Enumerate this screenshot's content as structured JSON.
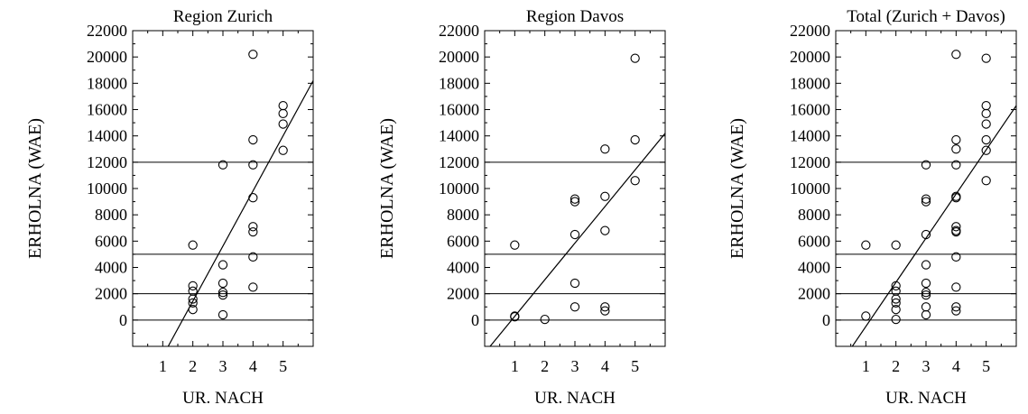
{
  "chart_data": [
    {
      "type": "scatter",
      "title": "Region Zurich",
      "xlabel": "UR. NACH",
      "ylabel": "ERHOLNA (WAE)",
      "xlim": [
        0,
        6
      ],
      "ylim": [
        -2000,
        22000
      ],
      "xticks": [
        "1",
        "2",
        "3",
        "4",
        "5"
      ],
      "yticks": [
        "0",
        "2000",
        "4000",
        "6000",
        "8000",
        "10000",
        "12000",
        "14000",
        "16000",
        "18000",
        "20000",
        "22000"
      ],
      "hlines": [
        0,
        2000,
        5000,
        12000
      ],
      "fit_line": {
        "x": [
          1.18,
          6
        ],
        "y": [
          -2000,
          18200
        ]
      },
      "points": [
        {
          "x": 2,
          "y": 5700
        },
        {
          "x": 2,
          "y": 2600
        },
        {
          "x": 2,
          "y": 2200
        },
        {
          "x": 2,
          "y": 1600
        },
        {
          "x": 2,
          "y": 1300
        },
        {
          "x": 2,
          "y": 800
        },
        {
          "x": 3,
          "y": 11800
        },
        {
          "x": 3,
          "y": 4200
        },
        {
          "x": 3,
          "y": 2800
        },
        {
          "x": 3,
          "y": 2100
        },
        {
          "x": 3,
          "y": 1900
        },
        {
          "x": 3,
          "y": 400
        },
        {
          "x": 4,
          "y": 20200
        },
        {
          "x": 4,
          "y": 13700
        },
        {
          "x": 4,
          "y": 11800
        },
        {
          "x": 4,
          "y": 9300
        },
        {
          "x": 4,
          "y": 7100
        },
        {
          "x": 4,
          "y": 6700
        },
        {
          "x": 4,
          "y": 4800
        },
        {
          "x": 4,
          "y": 2500
        },
        {
          "x": 5,
          "y": 16300
        },
        {
          "x": 5,
          "y": 15700
        },
        {
          "x": 5,
          "y": 14900
        },
        {
          "x": 5,
          "y": 12900
        }
      ]
    },
    {
      "type": "scatter",
      "title": "Region Davos",
      "xlabel": "UR. NACH",
      "ylabel": "ERHOLNA (WAE)",
      "xlim": [
        0,
        6
      ],
      "ylim": [
        -2000,
        22000
      ],
      "xticks": [
        "1",
        "2",
        "3",
        "4",
        "5"
      ],
      "yticks": [
        "0",
        "2000",
        "4000",
        "6000",
        "8000",
        "10000",
        "12000",
        "14000",
        "16000",
        "18000",
        "20000",
        "22000"
      ],
      "hlines": [
        0,
        2000,
        5000,
        12000
      ],
      "fit_line": {
        "x": [
          0.18,
          6
        ],
        "y": [
          -2000,
          14200
        ]
      },
      "points": [
        {
          "x": 1,
          "y": 5700
        },
        {
          "x": 1,
          "y": 300
        },
        {
          "x": 1,
          "y": 250
        },
        {
          "x": 2,
          "y": 50
        },
        {
          "x": 3,
          "y": 9200
        },
        {
          "x": 3,
          "y": 9000
        },
        {
          "x": 3,
          "y": 6500
        },
        {
          "x": 3,
          "y": 2800
        },
        {
          "x": 3,
          "y": 1000
        },
        {
          "x": 4,
          "y": 13000
        },
        {
          "x": 4,
          "y": 9400
        },
        {
          "x": 4,
          "y": 6800
        },
        {
          "x": 4,
          "y": 1000
        },
        {
          "x": 4,
          "y": 700
        },
        {
          "x": 5,
          "y": 19900
        },
        {
          "x": 5,
          "y": 13700
        },
        {
          "x": 5,
          "y": 10600
        }
      ]
    },
    {
      "type": "scatter",
      "title": "Total (Zurich + Davos)",
      "xlabel": "UR. NACH",
      "ylabel": "ERHOLNA (WAE)",
      "xlim": [
        0,
        6
      ],
      "ylim": [
        -2000,
        22000
      ],
      "xticks": [
        "1",
        "2",
        "3",
        "4",
        "5"
      ],
      "yticks": [
        "0",
        "2000",
        "4000",
        "6000",
        "8000",
        "10000",
        "12000",
        "14000",
        "16000",
        "18000",
        "20000",
        "22000"
      ],
      "hlines": [
        0,
        2000,
        5000,
        12000
      ],
      "fit_line": {
        "x": [
          0.55,
          6
        ],
        "y": [
          -2000,
          16300
        ]
      },
      "points": [
        {
          "x": 1,
          "y": 5700
        },
        {
          "x": 1,
          "y": 300
        },
        {
          "x": 2,
          "y": 5700
        },
        {
          "x": 2,
          "y": 2600
        },
        {
          "x": 2,
          "y": 2200
        },
        {
          "x": 2,
          "y": 1600
        },
        {
          "x": 2,
          "y": 1300
        },
        {
          "x": 2,
          "y": 800
        },
        {
          "x": 2,
          "y": 50
        },
        {
          "x": 3,
          "y": 11800
        },
        {
          "x": 3,
          "y": 9200
        },
        {
          "x": 3,
          "y": 9000
        },
        {
          "x": 3,
          "y": 6500
        },
        {
          "x": 3,
          "y": 4200
        },
        {
          "x": 3,
          "y": 2800
        },
        {
          "x": 3,
          "y": 2100
        },
        {
          "x": 3,
          "y": 1900
        },
        {
          "x": 3,
          "y": 1000
        },
        {
          "x": 3,
          "y": 400
        },
        {
          "x": 4,
          "y": 20200
        },
        {
          "x": 4,
          "y": 13700
        },
        {
          "x": 4,
          "y": 13000
        },
        {
          "x": 4,
          "y": 11800
        },
        {
          "x": 4,
          "y": 9400
        },
        {
          "x": 4,
          "y": 9300
        },
        {
          "x": 4,
          "y": 7100
        },
        {
          "x": 4,
          "y": 6800
        },
        {
          "x": 4,
          "y": 6700
        },
        {
          "x": 4,
          "y": 4800
        },
        {
          "x": 4,
          "y": 2500
        },
        {
          "x": 4,
          "y": 1000
        },
        {
          "x": 4,
          "y": 700
        },
        {
          "x": 5,
          "y": 19900
        },
        {
          "x": 5,
          "y": 16300
        },
        {
          "x": 5,
          "y": 15700
        },
        {
          "x": 5,
          "y": 14900
        },
        {
          "x": 5,
          "y": 13700
        },
        {
          "x": 5,
          "y": 12900
        },
        {
          "x": 5,
          "y": 10600
        }
      ]
    }
  ]
}
